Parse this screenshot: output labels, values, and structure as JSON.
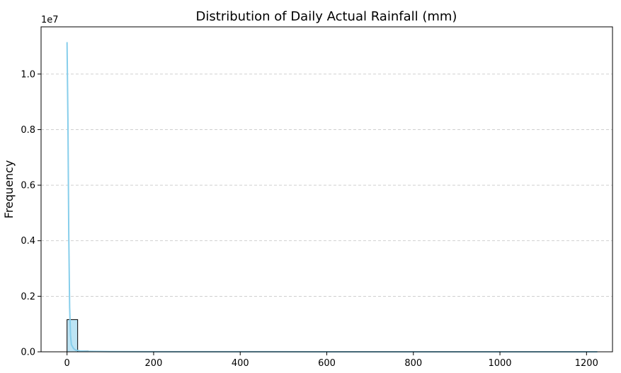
{
  "chart_data": {
    "type": "histogram",
    "title": "Distribution of Daily Actual Rainfall (mm)",
    "xlabel": "",
    "ylabel": "Frequency",
    "y_scale_note": "1e7",
    "xlim": [
      -60,
      1260
    ],
    "ylim": [
      0,
      11700000
    ],
    "x_ticks": [
      0,
      200,
      400,
      600,
      800,
      1000,
      1200
    ],
    "y_ticks": [
      0,
      2000000,
      4000000,
      6000000,
      8000000,
      10000000
    ],
    "y_tick_labels": [
      "0.0",
      "0.2",
      "0.4",
      "0.6",
      "0.8",
      "1.0"
    ],
    "grid": "y-dashed",
    "bins": [
      {
        "x0": 0,
        "x1": 24.5,
        "count": 1160000
      },
      {
        "x0": 24.5,
        "x1": 49,
        "count": 30000
      },
      {
        "x0": 49,
        "x1": 73.5,
        "count": 8000
      },
      {
        "x0": 73.5,
        "x1": 98,
        "count": 3000
      },
      {
        "x0": 98,
        "x1": 122.5,
        "count": 1000
      }
    ],
    "kde": {
      "x": [
        0,
        2,
        4,
        6,
        8,
        10,
        15,
        20,
        30,
        50,
        100,
        200,
        400,
        600,
        800,
        1000,
        1225
      ],
      "y": [
        11150000,
        8400000,
        4200000,
        1600000,
        600000,
        260000,
        120000,
        60000,
        30000,
        15000,
        8000,
        4000,
        2000,
        1000,
        500,
        200,
        100
      ]
    },
    "colors": {
      "bar_fill": "#87ceeb",
      "bar_edge": "#000000",
      "kde_line": "#87ceeb",
      "grid": "#c0c0c0"
    }
  }
}
